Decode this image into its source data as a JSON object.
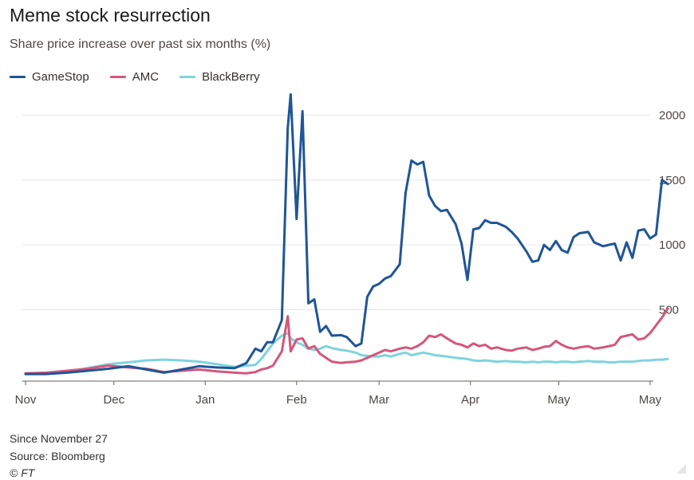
{
  "title": "Meme stock resurrection",
  "subtitle": "Share price increase over past six months (%)",
  "footer": {
    "note": "Since November 27",
    "source": "Source: Bloomberg",
    "copyright": "© FT"
  },
  "chart_data": {
    "type": "line",
    "title": "Meme stock resurrection",
    "subtitle": "Share price increase over past six months (%)",
    "ylim": [
      -50,
      2150
    ],
    "yticks": [
      500,
      1000,
      1500,
      2000
    ],
    "ytick_labels": [
      "500",
      "1000",
      "1500",
      "2000"
    ],
    "y_axis_side": "right",
    "grid": true,
    "legend_position": "top-left",
    "x_start": "2020-11-01",
    "x_end": "2021-05-01",
    "xticks": [
      {
        "label": "Nov",
        "date": "2020-11-01"
      },
      {
        "label": "Dec",
        "date": "2020-12-01"
      },
      {
        "label": "Jan",
        "date": "2021-01-01"
      },
      {
        "label": "Feb",
        "date": "2021-02-01"
      },
      {
        "label": "Mar",
        "date": "2021-03-01"
      },
      {
        "label": "Apr",
        "date": "2021-04-01"
      },
      {
        "label": "May",
        "date": "2021-05-01"
      },
      {
        "label": "May",
        "date": "2021-06-01"
      }
    ],
    "series": [
      {
        "name": "GameStop",
        "color": "#1f5596",
        "points": [
          [
            "2020-11-01",
            5
          ],
          [
            "2020-11-08",
            5
          ],
          [
            "2020-11-15",
            15
          ],
          [
            "2020-11-22",
            30
          ],
          [
            "2020-11-29",
            45
          ],
          [
            "2020-12-06",
            65
          ],
          [
            "2020-12-12",
            40
          ],
          [
            "2020-12-18",
            15
          ],
          [
            "2020-12-24",
            40
          ],
          [
            "2020-12-30",
            65
          ],
          [
            "2021-01-05",
            55
          ],
          [
            "2021-01-11",
            50
          ],
          [
            "2021-01-15",
            90
          ],
          [
            "2021-01-18",
            200
          ],
          [
            "2021-01-20",
            180
          ],
          [
            "2021-01-22",
            250
          ],
          [
            "2021-01-24",
            250
          ],
          [
            "2021-01-27",
            420
          ],
          [
            "2021-01-29",
            1900
          ],
          [
            "2021-01-30",
            2160
          ],
          [
            "2021-02-01",
            1200
          ],
          [
            "2021-02-03",
            2030
          ],
          [
            "2021-02-05",
            550
          ],
          [
            "2021-02-07",
            580
          ],
          [
            "2021-02-09",
            330
          ],
          [
            "2021-02-11",
            375
          ],
          [
            "2021-02-13",
            300
          ],
          [
            "2021-02-16",
            305
          ],
          [
            "2021-02-18",
            290
          ],
          [
            "2021-02-21",
            220
          ],
          [
            "2021-02-23",
            240
          ],
          [
            "2021-02-25",
            600
          ],
          [
            "2021-02-27",
            680
          ],
          [
            "2021-03-01",
            700
          ],
          [
            "2021-03-03",
            740
          ],
          [
            "2021-03-05",
            760
          ],
          [
            "2021-03-08",
            850
          ],
          [
            "2021-03-10",
            1400
          ],
          [
            "2021-03-12",
            1650
          ],
          [
            "2021-03-14",
            1620
          ],
          [
            "2021-03-16",
            1640
          ],
          [
            "2021-03-18",
            1380
          ],
          [
            "2021-03-20",
            1300
          ],
          [
            "2021-03-22",
            1260
          ],
          [
            "2021-03-24",
            1270
          ],
          [
            "2021-03-27",
            1160
          ],
          [
            "2021-03-29",
            1010
          ],
          [
            "2021-03-31",
            730
          ],
          [
            "2021-04-02",
            1120
          ],
          [
            "2021-04-04",
            1130
          ],
          [
            "2021-04-06",
            1190
          ],
          [
            "2021-04-08",
            1170
          ],
          [
            "2021-04-10",
            1170
          ],
          [
            "2021-04-13",
            1140
          ],
          [
            "2021-04-15",
            1100
          ],
          [
            "2021-04-17",
            1050
          ],
          [
            "2021-04-20",
            950
          ],
          [
            "2021-04-22",
            870
          ],
          [
            "2021-04-24",
            880
          ],
          [
            "2021-04-26",
            1000
          ],
          [
            "2021-04-28",
            960
          ],
          [
            "2021-04-30",
            1030
          ],
          [
            "2021-05-02",
            960
          ],
          [
            "2021-05-04",
            940
          ],
          [
            "2021-05-06",
            1060
          ],
          [
            "2021-05-08",
            1090
          ],
          [
            "2021-05-11",
            1100
          ],
          [
            "2021-05-13",
            1020
          ],
          [
            "2021-05-16",
            990
          ],
          [
            "2021-05-18",
            1000
          ],
          [
            "2021-05-20",
            1010
          ],
          [
            "2021-05-22",
            880
          ],
          [
            "2021-05-24",
            1020
          ],
          [
            "2021-05-26",
            900
          ],
          [
            "2021-05-28",
            1110
          ],
          [
            "2021-05-30",
            1120
          ],
          [
            "2021-06-01",
            1050
          ],
          [
            "2021-06-03",
            1080
          ],
          [
            "2021-06-05",
            1500
          ],
          [
            "2021-06-07",
            1470
          ]
        ]
      },
      {
        "name": "AMC",
        "color": "#d5567c",
        "points": [
          [
            "2020-11-01",
            10
          ],
          [
            "2020-11-08",
            15
          ],
          [
            "2020-11-15",
            30
          ],
          [
            "2020-11-22",
            45
          ],
          [
            "2020-11-29",
            70
          ],
          [
            "2020-12-06",
            55
          ],
          [
            "2020-12-12",
            45
          ],
          [
            "2020-12-18",
            20
          ],
          [
            "2020-12-24",
            30
          ],
          [
            "2020-12-30",
            40
          ],
          [
            "2021-01-05",
            25
          ],
          [
            "2021-01-11",
            15
          ],
          [
            "2021-01-15",
            10
          ],
          [
            "2021-01-18",
            20
          ],
          [
            "2021-01-20",
            40
          ],
          [
            "2021-01-22",
            50
          ],
          [
            "2021-01-24",
            70
          ],
          [
            "2021-01-27",
            180
          ],
          [
            "2021-01-29",
            450
          ],
          [
            "2021-01-30",
            180
          ],
          [
            "2021-02-01",
            270
          ],
          [
            "2021-02-03",
            280
          ],
          [
            "2021-02-05",
            200
          ],
          [
            "2021-02-07",
            220
          ],
          [
            "2021-02-09",
            160
          ],
          [
            "2021-02-11",
            130
          ],
          [
            "2021-02-13",
            100
          ],
          [
            "2021-02-16",
            90
          ],
          [
            "2021-02-18",
            95
          ],
          [
            "2021-02-21",
            100
          ],
          [
            "2021-02-23",
            110
          ],
          [
            "2021-02-25",
            130
          ],
          [
            "2021-02-27",
            150
          ],
          [
            "2021-03-01",
            170
          ],
          [
            "2021-03-03",
            190
          ],
          [
            "2021-03-05",
            180
          ],
          [
            "2021-03-08",
            200
          ],
          [
            "2021-03-10",
            210
          ],
          [
            "2021-03-12",
            200
          ],
          [
            "2021-03-14",
            220
          ],
          [
            "2021-03-16",
            250
          ],
          [
            "2021-03-18",
            300
          ],
          [
            "2021-03-20",
            290
          ],
          [
            "2021-03-22",
            310
          ],
          [
            "2021-03-24",
            280
          ],
          [
            "2021-03-27",
            240
          ],
          [
            "2021-03-29",
            230
          ],
          [
            "2021-03-31",
            210
          ],
          [
            "2021-04-02",
            240
          ],
          [
            "2021-04-04",
            220
          ],
          [
            "2021-04-06",
            230
          ],
          [
            "2021-04-08",
            200
          ],
          [
            "2021-04-10",
            210
          ],
          [
            "2021-04-13",
            190
          ],
          [
            "2021-04-15",
            185
          ],
          [
            "2021-04-17",
            200
          ],
          [
            "2021-04-20",
            210
          ],
          [
            "2021-04-22",
            190
          ],
          [
            "2021-04-24",
            200
          ],
          [
            "2021-04-26",
            215
          ],
          [
            "2021-04-28",
            220
          ],
          [
            "2021-04-30",
            260
          ],
          [
            "2021-05-02",
            230
          ],
          [
            "2021-05-04",
            210
          ],
          [
            "2021-05-06",
            200
          ],
          [
            "2021-05-08",
            210
          ],
          [
            "2021-05-11",
            220
          ],
          [
            "2021-05-13",
            200
          ],
          [
            "2021-05-16",
            210
          ],
          [
            "2021-05-18",
            220
          ],
          [
            "2021-05-20",
            230
          ],
          [
            "2021-05-22",
            290
          ],
          [
            "2021-05-24",
            300
          ],
          [
            "2021-05-26",
            310
          ],
          [
            "2021-05-28",
            270
          ],
          [
            "2021-05-30",
            280
          ],
          [
            "2021-06-01",
            320
          ],
          [
            "2021-06-03",
            380
          ],
          [
            "2021-06-05",
            440
          ],
          [
            "2021-06-07",
            510
          ]
        ]
      },
      {
        "name": "BlackBerry",
        "color": "#7fd3de",
        "points": [
          [
            "2020-11-01",
            5
          ],
          [
            "2020-11-08",
            8
          ],
          [
            "2020-11-15",
            20
          ],
          [
            "2020-11-22",
            50
          ],
          [
            "2020-11-29",
            80
          ],
          [
            "2020-12-06",
            95
          ],
          [
            "2020-12-12",
            110
          ],
          [
            "2020-12-18",
            115
          ],
          [
            "2020-12-24",
            110
          ],
          [
            "2020-12-30",
            100
          ],
          [
            "2021-01-05",
            80
          ],
          [
            "2021-01-11",
            60
          ],
          [
            "2021-01-15",
            70
          ],
          [
            "2021-01-18",
            75
          ],
          [
            "2021-01-20",
            120
          ],
          [
            "2021-01-22",
            180
          ],
          [
            "2021-01-24",
            240
          ],
          [
            "2021-01-27",
            300
          ],
          [
            "2021-01-29",
            320
          ],
          [
            "2021-01-30",
            280
          ],
          [
            "2021-02-01",
            250
          ],
          [
            "2021-02-03",
            230
          ],
          [
            "2021-02-05",
            200
          ],
          [
            "2021-02-07",
            190
          ],
          [
            "2021-02-09",
            200
          ],
          [
            "2021-02-11",
            220
          ],
          [
            "2021-02-13",
            205
          ],
          [
            "2021-02-16",
            190
          ],
          [
            "2021-02-18",
            185
          ],
          [
            "2021-02-21",
            170
          ],
          [
            "2021-02-23",
            150
          ],
          [
            "2021-02-25",
            145
          ],
          [
            "2021-02-27",
            140
          ],
          [
            "2021-03-01",
            140
          ],
          [
            "2021-03-03",
            150
          ],
          [
            "2021-03-05",
            140
          ],
          [
            "2021-03-08",
            160
          ],
          [
            "2021-03-10",
            170
          ],
          [
            "2021-03-12",
            150
          ],
          [
            "2021-03-14",
            160
          ],
          [
            "2021-03-16",
            170
          ],
          [
            "2021-03-18",
            160
          ],
          [
            "2021-03-20",
            150
          ],
          [
            "2021-03-22",
            145
          ],
          [
            "2021-03-24",
            140
          ],
          [
            "2021-03-27",
            130
          ],
          [
            "2021-03-29",
            125
          ],
          [
            "2021-03-31",
            120
          ],
          [
            "2021-04-02",
            110
          ],
          [
            "2021-04-04",
            105
          ],
          [
            "2021-04-06",
            110
          ],
          [
            "2021-04-08",
            105
          ],
          [
            "2021-04-10",
            100
          ],
          [
            "2021-04-13",
            105
          ],
          [
            "2021-04-15",
            100
          ],
          [
            "2021-04-17",
            100
          ],
          [
            "2021-04-20",
            95
          ],
          [
            "2021-04-22",
            100
          ],
          [
            "2021-04-24",
            95
          ],
          [
            "2021-04-26",
            100
          ],
          [
            "2021-04-28",
            100
          ],
          [
            "2021-04-30",
            95
          ],
          [
            "2021-05-02",
            100
          ],
          [
            "2021-05-04",
            100
          ],
          [
            "2021-05-06",
            95
          ],
          [
            "2021-05-08",
            100
          ],
          [
            "2021-05-11",
            105
          ],
          [
            "2021-05-13",
            100
          ],
          [
            "2021-05-16",
            100
          ],
          [
            "2021-05-18",
            95
          ],
          [
            "2021-05-20",
            95
          ],
          [
            "2021-05-22",
            100
          ],
          [
            "2021-05-24",
            100
          ],
          [
            "2021-05-26",
            100
          ],
          [
            "2021-05-28",
            105
          ],
          [
            "2021-05-30",
            110
          ],
          [
            "2021-06-01",
            110
          ],
          [
            "2021-06-03",
            115
          ],
          [
            "2021-06-05",
            115
          ],
          [
            "2021-06-07",
            120
          ]
        ]
      }
    ]
  }
}
